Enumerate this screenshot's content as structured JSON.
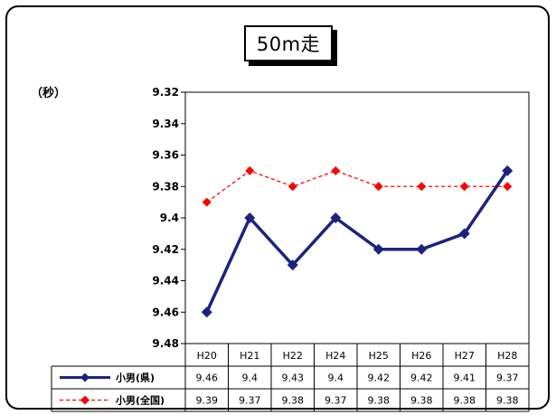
{
  "chart_data": {
    "type": "line",
    "title": "50m走",
    "unit_label": "（秒）",
    "categories": [
      "H20",
      "H21",
      "H22",
      "H24",
      "H25",
      "H26",
      "H27",
      "H28"
    ],
    "y_axis": {
      "reversed": true,
      "min": 9.32,
      "max": 9.48,
      "step": 0.02,
      "ticks": [
        "9.32",
        "9.34",
        "9.36",
        "9.38",
        "9.4",
        "9.42",
        "9.44",
        "9.46",
        "9.48"
      ]
    },
    "grid": false,
    "legend_placement": "data-table",
    "series": [
      {
        "name": "小男(県)",
        "color": "#1a237e",
        "line_style": "solid",
        "marker": "diamond",
        "values": [
          9.46,
          9.4,
          9.43,
          9.4,
          9.42,
          9.42,
          9.41,
          9.37
        ],
        "labels": [
          "9.46",
          "9.4",
          "9.43",
          "9.4",
          "9.42",
          "9.42",
          "9.41",
          "9.37"
        ]
      },
      {
        "name": "小男(全国)",
        "color": "#ff0000",
        "line_style": "dashed",
        "marker": "diamond",
        "values": [
          9.39,
          9.37,
          9.38,
          9.37,
          9.38,
          9.38,
          9.38,
          9.38
        ],
        "labels": [
          "9.39",
          "9.37",
          "9.38",
          "9.37",
          "9.38",
          "9.38",
          "9.38",
          "9.38"
        ]
      }
    ]
  }
}
